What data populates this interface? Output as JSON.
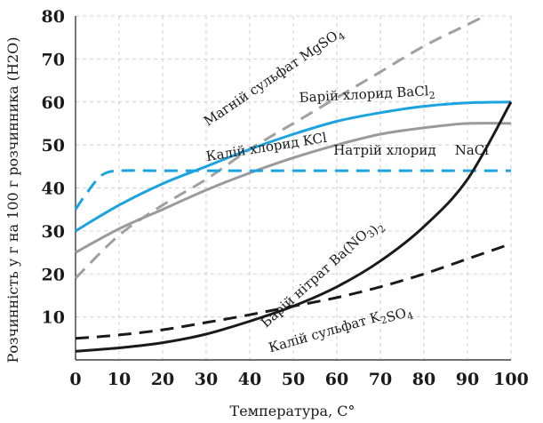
{
  "chart_data": {
    "type": "line",
    "xlabel": "Температура, C°",
    "ylabel": "Розчинність у г на 100 г розчинника (H2O)",
    "xlim": [
      0,
      100
    ],
    "ylim": [
      0,
      80
    ],
    "x_ticks": [
      "0",
      "10",
      "20",
      "30",
      "40",
      "50",
      "60",
      "70",
      "80",
      "90",
      "100"
    ],
    "y_ticks": [
      "10",
      "20",
      "30",
      "40",
      "50",
      "60",
      "70",
      "80"
    ],
    "grid": true,
    "series": [
      {
        "name": "Магній сульфат MgSO4",
        "color": "#a0a0a0",
        "dash": "dashed",
        "x": [
          0,
          10,
          20,
          30,
          40,
          50,
          60,
          70,
          80,
          90,
          100
        ],
        "y": [
          19,
          29,
          36,
          42,
          49,
          55,
          61,
          67,
          73,
          78,
          83
        ]
      },
      {
        "name": "Барій хлорид BaCl2",
        "color": "#1aa3de",
        "dash": "solid",
        "x": [
          0,
          10,
          20,
          30,
          40,
          50,
          60,
          70,
          80,
          90,
          100
        ],
        "y": [
          30,
          36,
          41,
          45,
          49,
          52.5,
          55.5,
          57.5,
          59,
          59.8,
          60
        ]
      },
      {
        "name": "Калій хлорид KCl",
        "color": "#9a9a9a",
        "dash": "solid",
        "x": [
          0,
          10,
          20,
          30,
          40,
          50,
          60,
          70,
          80,
          90,
          100
        ],
        "y": [
          25,
          30.5,
          35,
          39.5,
          43.5,
          47,
          50,
          52.5,
          54,
          55,
          55
        ]
      },
      {
        "name": "Натрій хлорид NaCl",
        "color": "#1aa3de",
        "dash": "dashed",
        "x": [
          0,
          2,
          5,
          7,
          10,
          20,
          30,
          40,
          50,
          60,
          70,
          80,
          90,
          100
        ],
        "y": [
          35,
          38,
          42,
          43.5,
          44,
          44,
          44,
          44,
          44,
          44,
          44,
          44,
          44,
          44
        ]
      },
      {
        "name": "Барій нітрат Ba(NO3)2",
        "color": "#1a1a1a",
        "dash": "solid",
        "x": [
          0,
          10,
          20,
          30,
          40,
          50,
          60,
          70,
          80,
          90,
          100
        ],
        "y": [
          2,
          2.8,
          4,
          6,
          9,
          12.5,
          17,
          23,
          31,
          42,
          60
        ]
      },
      {
        "name": "Калій сульфат K2SO4",
        "color": "#1a1a1a",
        "dash": "dashed",
        "x": [
          0,
          10,
          20,
          30,
          40,
          50,
          60,
          70,
          80,
          90,
          100
        ],
        "y": [
          5,
          5.8,
          7,
          8.7,
          10.5,
          12.5,
          14.5,
          17,
          20,
          23.5,
          27
        ]
      }
    ],
    "labels": [
      {
        "text": "Магній сульфат MgSO",
        "sub": "4",
        "x": 46,
        "y": 65,
        "angle": -34
      },
      {
        "text": "Барій хлорид BaCl",
        "sub": "2",
        "x": 67,
        "y": 60.8,
        "angle": -3
      },
      {
        "text": "Калій хлорид KCl",
        "x": 44,
        "y": 48.5,
        "angle": -9
      },
      {
        "text": "Натрій хлорид",
        "x": 71,
        "y": 47.8,
        "angle": 0
      },
      {
        "text": "NaCl",
        "x": 91,
        "y": 47.8,
        "angle": 0
      },
      {
        "text": "Барій нітрат Ba(NO",
        "sub": "3",
        "post": ")",
        "sub2": "2",
        "x": 57,
        "y": 19.5,
        "angle": -42
      },
      {
        "text": "Калій сульфат K",
        "sub": "2",
        "post": "SO",
        "sub2": "4",
        "x": 61,
        "y": 6.5,
        "angle": -16
      }
    ]
  }
}
